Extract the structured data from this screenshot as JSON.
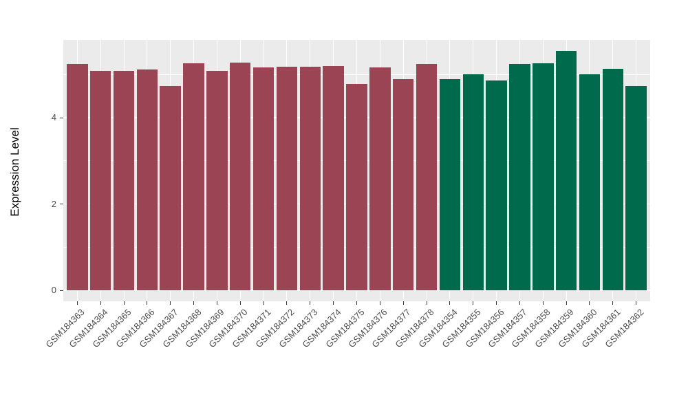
{
  "chart_data": {
    "type": "bar",
    "title": "",
    "xlabel": "",
    "ylabel": "Expression Level",
    "ylim": [
      0,
      5.8
    ],
    "yticks": [
      0,
      2,
      4
    ],
    "ytick_labels": [
      "0",
      "2",
      "4"
    ],
    "minor_gridlines": [
      1,
      3,
      5
    ],
    "grid": "on",
    "legend_position": "none",
    "categories": [
      "GSM184363",
      "GSM184364",
      "GSM184365",
      "GSM184366",
      "GSM184367",
      "GSM184368",
      "GSM184369",
      "GSM184370",
      "GSM184371",
      "GSM184372",
      "GSM184373",
      "GSM184374",
      "GSM184375",
      "GSM184376",
      "GSM184377",
      "GSM184378",
      "GSM184354",
      "GSM184355",
      "GSM184356",
      "GSM184357",
      "GSM184358",
      "GSM184359",
      "GSM184360",
      "GSM184361",
      "GSM184362"
    ],
    "values": [
      5.24,
      5.09,
      5.09,
      5.12,
      4.74,
      5.26,
      5.08,
      5.27,
      5.16,
      5.18,
      5.18,
      5.2,
      4.78,
      5.16,
      4.89,
      5.24,
      4.9,
      5.01,
      4.86,
      5.25,
      5.26,
      5.55,
      5.01,
      5.13,
      4.73
    ],
    "bar_group_index": [
      0,
      0,
      0,
      0,
      0,
      0,
      0,
      0,
      0,
      0,
      0,
      0,
      0,
      0,
      0,
      0,
      1,
      1,
      1,
      1,
      1,
      1,
      1,
      1,
      1
    ],
    "group_colors": [
      "#9B4453",
      "#006B4C"
    ],
    "colors": {
      "panel_background": "#EBEBEB",
      "grid": "#FFFFFF",
      "axis_text": "#4D4D4D",
      "axis_title": "#000000",
      "figure_background": "#FFFFFF"
    }
  }
}
